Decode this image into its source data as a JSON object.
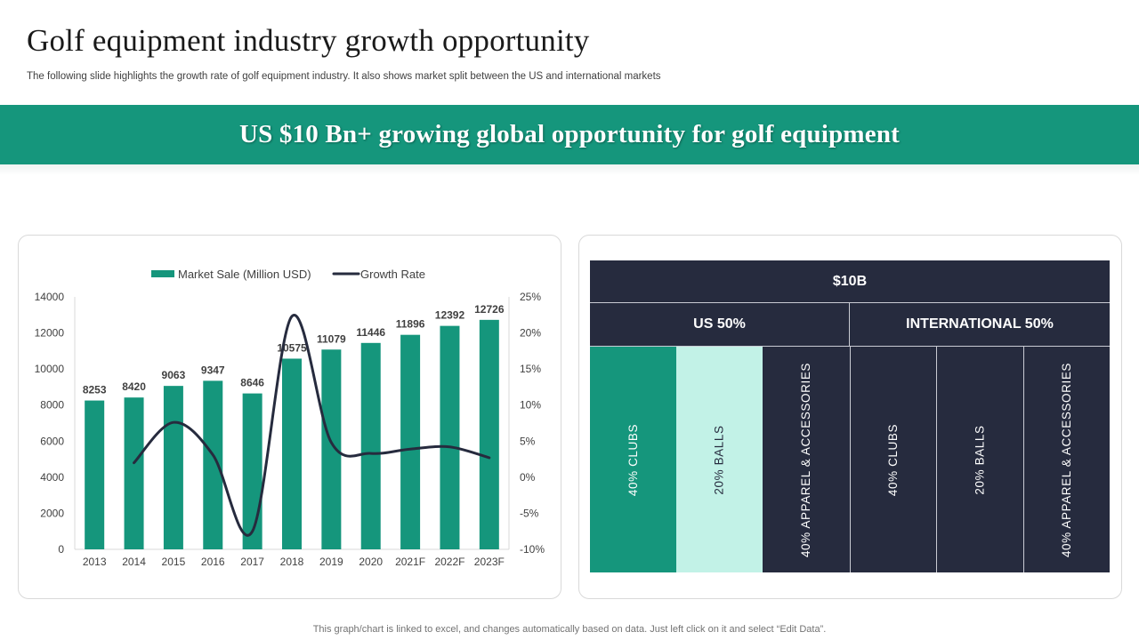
{
  "slide": {
    "title": "Golf equipment industry growth opportunity",
    "subtitle": "The following slide highlights the growth rate of golf equipment industry. It also shows market split between the US and international markets",
    "banner": "US $10 Bn+ growing global opportunity for golf equipment",
    "footer": "This graph/chart is linked to excel,  and changes automatically based on data. Just left click on it and select “Edit Data”."
  },
  "colors": {
    "accent": "#15967c",
    "dark": "#262b3e",
    "light_teal": "#c2f2e7",
    "line": "#262b3e"
  },
  "chart_data": {
    "type": "bar",
    "categories": [
      "2013",
      "2014",
      "2015",
      "2016",
      "2017",
      "2018",
      "2019",
      "2020",
      "2021F",
      "2022F",
      "2023F"
    ],
    "series": [
      {
        "name": "Market Sale (Million USD)",
        "type": "bar",
        "axis": "left",
        "values": [
          8253,
          8420,
          9063,
          9347,
          8646,
          10575,
          11079,
          11446,
          11896,
          12392,
          12726
        ]
      },
      {
        "name": "Growth Rate",
        "type": "line",
        "axis": "right",
        "values": [
          null,
          2.0,
          7.6,
          3.1,
          -7.5,
          22.3,
          4.8,
          3.3,
          3.9,
          4.2,
          2.7
        ]
      }
    ],
    "ylim": [
      0,
      14000
    ],
    "y_ticks": [
      "0",
      "2000",
      "4000",
      "6000",
      "8000",
      "10000",
      "12000",
      "14000"
    ],
    "y2lim": [
      -10,
      25
    ],
    "y2_ticks": [
      "-10%",
      "-5%",
      "0%",
      "5%",
      "10%",
      "15%",
      "20%",
      "25%"
    ],
    "legend": "top",
    "grid": false
  },
  "market_split": {
    "total": "$10B",
    "us": {
      "label": "US 50%",
      "segments": [
        {
          "label": "40% CLUBS",
          "color": "#15967c",
          "text_color": "#ffffff"
        },
        {
          "label": "20% BALLS",
          "color": "#c2f2e7",
          "text_color": "#262b3e"
        },
        {
          "label": "40% APPAREL & ACCESSORIES",
          "color": "#262b3e",
          "text_color": "#ffffff"
        }
      ]
    },
    "international": {
      "label": "INTERNATIONAL 50%",
      "segments": [
        {
          "label": "40% CLUBS",
          "color": "#262b3e",
          "text_color": "#ffffff"
        },
        {
          "label": "20% BALLS",
          "color": "#262b3e",
          "text_color": "#ffffff"
        },
        {
          "label": "40% APPAREL & ACCESSORIES",
          "color": "#262b3e",
          "text_color": "#ffffff"
        }
      ]
    }
  }
}
